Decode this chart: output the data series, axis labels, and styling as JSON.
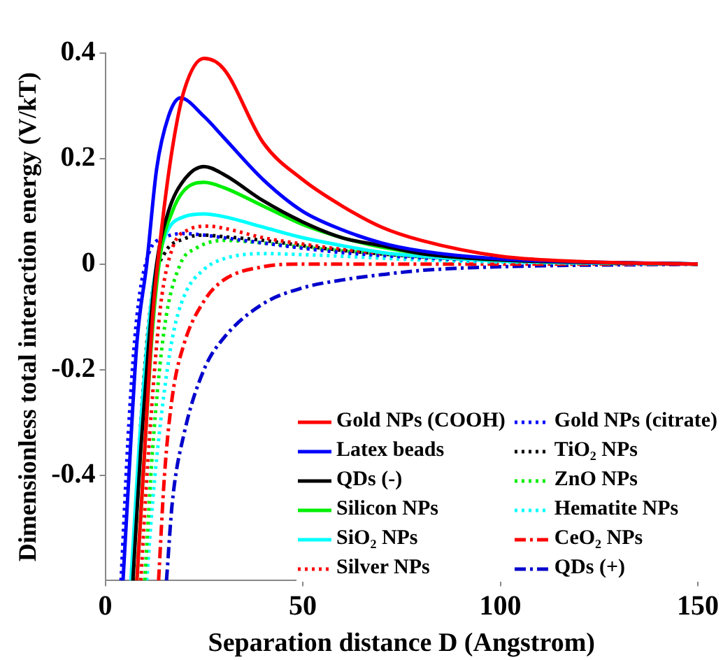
{
  "chart_data": {
    "type": "line",
    "xlabel": "Separation distance D (Angstrom)",
    "ylabel": "Dimensionless total interaction energy (V/kT)",
    "xlim": [
      0,
      150
    ],
    "xticks": [
      0,
      50,
      100,
      150
    ],
    "ylim": [
      -0.6,
      0.4
    ],
    "yticks": [
      -0.4,
      -0.2,
      0,
      0.2,
      0.4
    ],
    "grid": false,
    "legend": "bottom right",
    "marker": "none",
    "series": [
      {
        "name": "Gold NPs (COOH)",
        "color": "#ff0000",
        "line_style": "solid",
        "x": [
          8,
          10,
          12,
          14,
          17,
          20,
          25,
          30,
          40,
          50,
          60,
          70,
          80,
          100,
          120,
          150
        ],
        "values": [
          -0.6,
          -0.35,
          -0.1,
          0.05,
          0.22,
          0.33,
          0.39,
          0.37,
          0.23,
          0.16,
          0.11,
          0.07,
          0.045,
          0.015,
          0.005,
          0
        ]
      },
      {
        "name": "Latex beads",
        "color": "#0000ff",
        "line_style": "solid",
        "x": [
          4.5,
          6,
          8,
          10.5,
          13,
          16,
          19,
          25,
          30,
          40,
          50,
          60,
          70,
          80,
          100,
          150
        ],
        "values": [
          -0.6,
          -0.4,
          -0.15,
          0,
          0.18,
          0.28,
          0.315,
          0.28,
          0.24,
          0.16,
          0.1,
          0.065,
          0.04,
          0.025,
          0.01,
          0
        ]
      },
      {
        "name": "QDs (-)",
        "color": "#000000",
        "line_style": "solid",
        "x": [
          7,
          9,
          11,
          13,
          16,
          20,
          25,
          30,
          40,
          50,
          60,
          70,
          80,
          100,
          150
        ],
        "values": [
          -0.6,
          -0.35,
          -0.15,
          0,
          0.1,
          0.16,
          0.185,
          0.17,
          0.12,
          0.08,
          0.05,
          0.035,
          0.02,
          0.008,
          0
        ]
      },
      {
        "name": "Silicon NPs",
        "color": "#00ee00",
        "line_style": "solid",
        "x": [
          8,
          10,
          12,
          14,
          17,
          20,
          25,
          30,
          40,
          50,
          60,
          70,
          80,
          100,
          150
        ],
        "values": [
          -0.6,
          -0.35,
          -0.12,
          0.02,
          0.1,
          0.14,
          0.155,
          0.145,
          0.11,
          0.075,
          0.05,
          0.032,
          0.02,
          0.008,
          0
        ]
      },
      {
        "name": "SiO₂ NPs",
        "color": "#00ffff",
        "line_style": "solid",
        "x": [
          6.5,
          9,
          12,
          15,
          20,
          25,
          30,
          40,
          50,
          60,
          70,
          80,
          100,
          150
        ],
        "values": [
          -0.6,
          -0.3,
          -0.05,
          0.05,
          0.09,
          0.095,
          0.09,
          0.07,
          0.05,
          0.035,
          0.022,
          0.015,
          0.006,
          0
        ]
      },
      {
        "name": "Silver NPs",
        "color": "#ff0000",
        "line_style": "dotted",
        "x": [
          9,
          11,
          14,
          17,
          21,
          26,
          30,
          40,
          50,
          60,
          80,
          100,
          150
        ],
        "values": [
          -0.6,
          -0.35,
          -0.08,
          0.03,
          0.065,
          0.072,
          0.068,
          0.05,
          0.038,
          0.028,
          0.015,
          0.007,
          0
        ]
      },
      {
        "name": "Gold NPs (citrate)",
        "color": "#0000ff",
        "line_style": "dotted",
        "x": [
          4,
          6,
          8,
          11,
          15,
          20,
          25,
          30,
          40,
          50,
          60,
          80,
          100,
          150
        ],
        "values": [
          -0.6,
          -0.3,
          -0.1,
          0.02,
          0.05,
          0.058,
          0.055,
          0.05,
          0.04,
          0.03,
          0.022,
          0.012,
          0.006,
          0
        ]
      },
      {
        "name": "TiO₂ NPs",
        "color": "#000000",
        "line_style": "dotted",
        "x": [
          7,
          9,
          12,
          15,
          20,
          25,
          30,
          40,
          50,
          60,
          80,
          100,
          150
        ],
        "values": [
          -0.6,
          -0.3,
          -0.05,
          0.02,
          0.048,
          0.055,
          0.052,
          0.045,
          0.035,
          0.026,
          0.014,
          0.007,
          0
        ]
      },
      {
        "name": "ZnO NPs",
        "color": "#00ee00",
        "line_style": "dotted",
        "x": [
          10,
          12,
          15,
          19,
          23,
          30,
          40,
          50,
          60,
          80,
          100,
          150
        ],
        "values": [
          -0.6,
          -0.35,
          -0.12,
          0,
          0.03,
          0.045,
          0.04,
          0.032,
          0.025,
          0.013,
          0.006,
          0
        ]
      },
      {
        "name": "Hematite NPs",
        "color": "#00ffff",
        "line_style": "dotted",
        "x": [
          10.5,
          12,
          14,
          17,
          20,
          25,
          30,
          40,
          50,
          60,
          80,
          100,
          150
        ],
        "values": [
          -0.6,
          -0.45,
          -0.3,
          -0.14,
          -0.06,
          -0.01,
          0.01,
          0.02,
          0.018,
          0.015,
          0.008,
          0.004,
          0
        ]
      },
      {
        "name": "CeO₂ NPs",
        "color": "#ff0000",
        "line_style": "dashed",
        "x": [
          13.5,
          15,
          17,
          20,
          25,
          30,
          40,
          50,
          100,
          150
        ],
        "values": [
          -0.6,
          -0.4,
          -0.25,
          -0.15,
          -0.07,
          -0.03,
          -0.005,
          0,
          0,
          0
        ]
      },
      {
        "name": "QDs (+)",
        "color": "#0000cc",
        "line_style": "dashed",
        "x": [
          15.5,
          17,
          20,
          25,
          30,
          40,
          50,
          60,
          70,
          80,
          100,
          150
        ],
        "values": [
          -0.6,
          -0.45,
          -0.32,
          -0.2,
          -0.14,
          -0.075,
          -0.045,
          -0.03,
          -0.02,
          -0.012,
          -0.005,
          0
        ]
      }
    ]
  }
}
